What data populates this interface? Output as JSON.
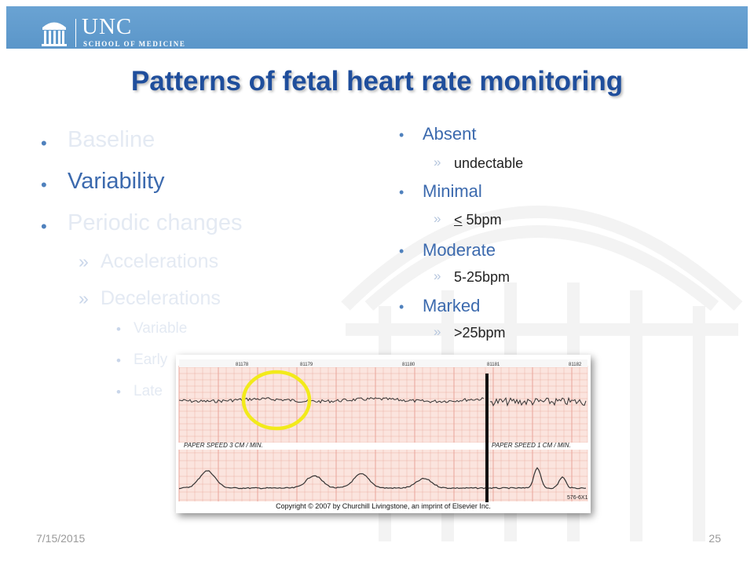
{
  "header": {
    "logo_main": "UNC",
    "logo_sub": "SCHOOL OF MEDICINE"
  },
  "title": "Patterns of fetal heart rate monitoring",
  "left_bullets": {
    "baseline": "Baseline",
    "variability": "Variability",
    "periodic_changes": "Periodic changes",
    "accelerations": "Accelerations",
    "decelerations": "Decelerations",
    "variable": "Variable",
    "early": "Early",
    "late": "Late"
  },
  "right_bullets": {
    "absent": "Absent",
    "absent_desc": "undectable",
    "minimal": "Minimal",
    "minimal_desc": "5bpm",
    "minimal_symbol": "<",
    "moderate": "Moderate",
    "moderate_desc": "5-25bpm",
    "marked": "Marked",
    "marked_desc": ">25bpm"
  },
  "strip": {
    "page_numbers": [
      "81178",
      "81179",
      "81180",
      "81181",
      "81182"
    ],
    "paper_speed_left": "PAPER SPEED    3 CM / MIN.",
    "paper_speed_right": "PAPER SPEED    1 CM / MIN.",
    "serial": "576-6X1",
    "copyright": "Copyright © 2007 by Churchill Livingstone, an imprint of Elsevier Inc.",
    "highlight_color": "#f2ea1a",
    "grid_color": "#e8a49a"
  },
  "footer": {
    "date": "7/15/2015",
    "page": "25"
  },
  "colors": {
    "header_band": "#5b96c9",
    "title": "#1f4e9c",
    "bullet_active": "#3c6aae",
    "bullet_faded": "#e4eaf3"
  }
}
